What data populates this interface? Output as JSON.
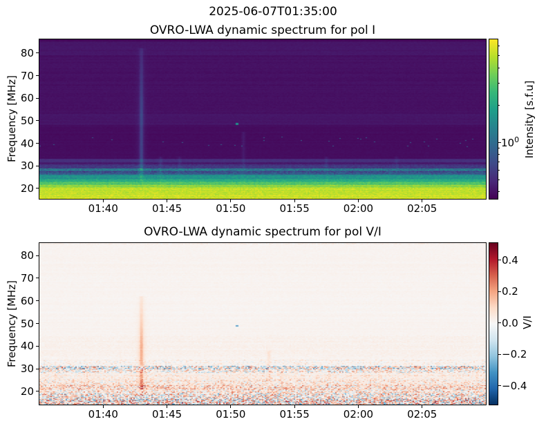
{
  "figure": {
    "suptitle": "2025-06-07T01:35:00",
    "background": "#ffffff",
    "text_color": "#000000"
  },
  "panels": [
    {
      "title": "OVRO-LWA dynamic spectrum for pol I",
      "ylabel": "Frequency [MHz]",
      "yticks": [
        "20",
        "30",
        "40",
        "50",
        "60",
        "70",
        "80"
      ],
      "xticks": [
        "01:40",
        "01:45",
        "01:50",
        "01:55",
        "02:00",
        "02:05"
      ],
      "colorbar": {
        "label": "Intensity [s.f.u]",
        "scale": "log",
        "tick_base": "10",
        "tick_exp": "0"
      }
    },
    {
      "title": "OVRO-LWA dynamic spectrum for pol V/I",
      "ylabel": "Frequency [MHz]",
      "yticks": [
        "20",
        "30",
        "40",
        "50",
        "60",
        "70",
        "80"
      ],
      "xticks": [
        "01:40",
        "01:45",
        "01:50",
        "01:55",
        "02:00",
        "02:05"
      ],
      "colorbar": {
        "label": "V/I",
        "ticks": [
          "0.4",
          "0.2",
          "0.0",
          "−0.2",
          "−0.4"
        ]
      }
    }
  ],
  "chart_data": [
    {
      "type": "heatmap",
      "title": "OVRO-LWA dynamic spectrum for pol I",
      "x_axis": {
        "start_hhmm": "01:35",
        "end_hhmm": "02:10",
        "tick_labels": [
          "01:40",
          "01:45",
          "01:50",
          "01:55",
          "02:00",
          "02:05"
        ],
        "tick_minutes": [
          100,
          105,
          110,
          115,
          120,
          125
        ]
      },
      "y_axis": {
        "label": "Frequency [MHz]",
        "range_mhz": [
          15,
          86
        ],
        "ticks_mhz": [
          20,
          30,
          40,
          50,
          60,
          70,
          80
        ]
      },
      "colorbar": {
        "label": "Intensity [s.f.u]",
        "scale": "log",
        "vmin_sfu": 0.35,
        "vmax_sfu": 6.8,
        "major_ticks": [
          1.0
        ],
        "minor_ticks": [
          0.4,
          0.5,
          0.6,
          0.7,
          0.8,
          0.9,
          2,
          3,
          4,
          5,
          6
        ]
      },
      "colormap": {
        "name": "viridis",
        "stops": [
          "#440154",
          "#482878",
          "#3e4a89",
          "#31688e",
          "#26828e",
          "#1f9e89",
          "#35b779",
          "#6ece58",
          "#b5de2b",
          "#fde725"
        ]
      },
      "bands": [
        {
          "f_mhz": [
            86.0,
            85.3
          ],
          "pos": 0.015,
          "sfu": 0.37,
          "noise": 0.01
        },
        {
          "f_mhz": [
            85.3,
            79.0
          ],
          "pos": 0.06,
          "sfu": 0.42,
          "noise": 0.012
        },
        {
          "f_mhz": [
            79.0,
            53.0
          ],
          "pos": 0.045,
          "sfu": 0.4,
          "noise": 0.012
        },
        {
          "f_mhz": [
            53.0,
            48.0
          ],
          "pos": 0.058,
          "sfu": 0.42,
          "noise": 0.012
        },
        {
          "f_mhz": [
            48.0,
            33.2
          ],
          "pos": 0.032,
          "sfu": 0.39,
          "noise": 0.01
        },
        {
          "f_mhz": [
            33.2,
            31.6
          ],
          "pos": 0.13,
          "sfu": 0.51,
          "noise": 0.02
        },
        {
          "f_mhz": [
            31.6,
            30.6
          ],
          "pos": 0.075,
          "sfu": 0.44,
          "noise": 0.02
        },
        {
          "f_mhz": [
            30.6,
            29.0
          ],
          "pos": 0.17,
          "sfu": 0.58,
          "noise": 0.05
        },
        {
          "f_mhz": [
            29.0,
            28.0
          ],
          "pos": 0.4,
          "sfu": 1.15,
          "noise": 0.13
        },
        {
          "f_mhz": [
            28.0,
            26.0
          ],
          "pos": 0.27,
          "sfu": 0.78,
          "noise": 0.1
        },
        {
          "f_mhz": [
            26.0,
            24.3
          ],
          "pos": 0.52,
          "sfu": 1.65,
          "noise": 0.07
        },
        {
          "f_mhz": [
            24.3,
            23.0
          ],
          "pos": 0.62,
          "sfu": 2.22,
          "noise": 0.06
        },
        {
          "f_mhz": [
            23.0,
            21.5
          ],
          "pos": 0.72,
          "sfu": 3.0,
          "noise": 0.06
        },
        {
          "f_mhz": [
            21.5,
            20.3
          ],
          "pos": 0.84,
          "sfu": 4.3,
          "noise": 0.06
        },
        {
          "f_mhz": [
            20.3,
            14.5
          ],
          "pos": 0.92,
          "sfu": 5.4,
          "noise": 0.055
        }
      ],
      "features": [
        {
          "kind": "type-iii-burst",
          "time": "01:43",
          "f_mhz": [
            23,
            82
          ],
          "strength": 0.14
        },
        {
          "kind": "faint-streak",
          "time": "01:44.5",
          "f_mhz": [
            21,
            34
          ],
          "strength": 0.05
        },
        {
          "kind": "faint-streak",
          "time": "01:46",
          "f_mhz": [
            21,
            34
          ],
          "strength": 0.04
        },
        {
          "kind": "faint-streak",
          "time": "01:51",
          "f_mhz": [
            21,
            45
          ],
          "strength": 0.04
        },
        {
          "kind": "faint-streak",
          "time": "01:57.5",
          "f_mhz": [
            21,
            34
          ],
          "strength": 0.04
        },
        {
          "kind": "faint-streak",
          "time": "02:03",
          "f_mhz": [
            21,
            34
          ],
          "strength": 0.035
        },
        {
          "kind": "speck",
          "time": "01:50.5",
          "f_mhz": [
            48,
            49.2
          ],
          "strength": 0.5
        }
      ]
    },
    {
      "type": "heatmap",
      "title": "OVRO-LWA dynamic spectrum for pol V/I",
      "x_axis": {
        "start_hhmm": "01:35",
        "end_hhmm": "02:10",
        "tick_labels": [
          "01:40",
          "01:45",
          "01:50",
          "01:55",
          "02:00",
          "02:05"
        ],
        "tick_minutes": [
          100,
          105,
          110,
          115,
          120,
          125
        ]
      },
      "y_axis": {
        "label": "Frequency [MHz]",
        "range_mhz": [
          14,
          85.5
        ],
        "ticks_mhz": [
          20,
          30,
          40,
          50,
          60,
          70,
          80
        ]
      },
      "colorbar": {
        "label": "V/I",
        "scale": "linear",
        "vmin": -0.52,
        "vmax": 0.51,
        "ticks": [
          0.4,
          0.2,
          0.0,
          -0.2,
          -0.4
        ]
      },
      "colormap": {
        "name": "RdBu_r",
        "stops": [
          "#053061",
          "#2166ac",
          "#4393c3",
          "#92c5de",
          "#d1e5f0",
          "#f7f7f7",
          "#fddbc7",
          "#f4a582",
          "#d6604d",
          "#b2182b",
          "#67001f"
        ]
      },
      "bands": [
        {
          "f_mhz": [
            86.0,
            84.8
          ],
          "bias": 0.02,
          "amp": 0.04,
          "density": 0.5
        },
        {
          "f_mhz": [
            84.8,
            45.0
          ],
          "bias": 0.004,
          "amp": 0.012,
          "density": 0.3
        },
        {
          "f_mhz": [
            45.0,
            34.0
          ],
          "bias": 0.012,
          "amp": 0.022,
          "density": 0.5
        },
        {
          "f_mhz": [
            34.0,
            31.3
          ],
          "bias": 0.012,
          "amp": 0.1,
          "density": 0.35
        },
        {
          "f_mhz": [
            31.3,
            29.7
          ],
          "bias": -0.02,
          "amp": 0.3,
          "density": 0.85
        },
        {
          "f_mhz": [
            29.7,
            28.3
          ],
          "bias": 0.0,
          "amp": 0.22,
          "density": 0.7
        },
        {
          "f_mhz": [
            28.3,
            25.2
          ],
          "bias": 0.03,
          "amp": 0.1,
          "density": 0.5
        },
        {
          "f_mhz": [
            25.2,
            22.8
          ],
          "bias": 0.05,
          "amp": 0.16,
          "density": 0.6
        },
        {
          "f_mhz": [
            22.8,
            19.1
          ],
          "bias": 0.05,
          "amp": 0.22,
          "density": 0.7
        },
        {
          "f_mhz": [
            19.1,
            16.7
          ],
          "bias": 0.02,
          "amp": 0.28,
          "density": 0.8
        },
        {
          "f_mhz": [
            16.7,
            14.2
          ],
          "bias": 0.03,
          "amp": 0.34,
          "density": 0.9
        }
      ],
      "features": [
        {
          "kind": "type-iii-burst",
          "time": "01:43",
          "f_mhz": [
            17,
            62
          ],
          "value": 0.13
        },
        {
          "kind": "faint-streak",
          "time": "01:53",
          "f_mhz": [
            14.2,
            38
          ],
          "value": 0.05
        },
        {
          "kind": "faint-streak",
          "time": "01:54",
          "f_mhz": [
            14.2,
            30
          ],
          "value": 0.04
        },
        {
          "kind": "speck",
          "time": "01:50.5",
          "f_mhz": [
            48.5,
            49.3
          ],
          "value": -0.28
        }
      ]
    }
  ]
}
